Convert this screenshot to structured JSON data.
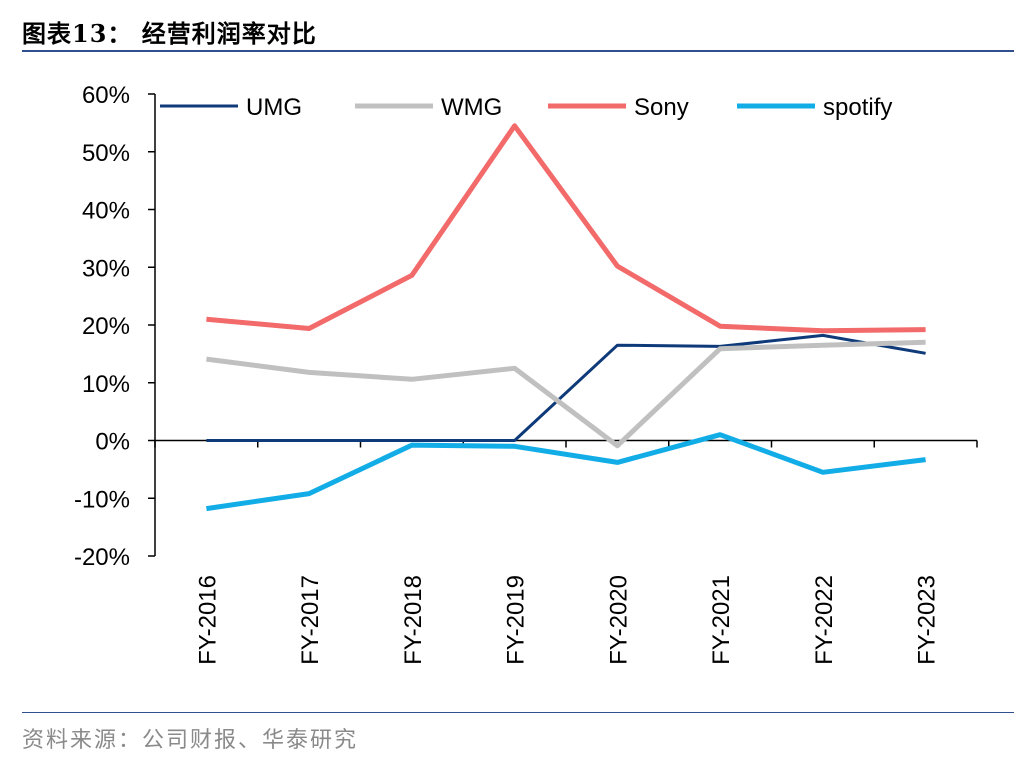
{
  "figure": {
    "title": "图表13：  经营利润率对比",
    "source": "资料来源：公司财报、华泰研究"
  },
  "chart_data": {
    "type": "line",
    "title": "",
    "xlabel": "",
    "ylabel": "",
    "categories": [
      "FY-2016",
      "FY-2017",
      "FY-2018",
      "FY-2019",
      "FY-2020",
      "FY-2021",
      "FY-2022",
      "FY-2023"
    ],
    "yticks": [
      "60%",
      "50%",
      "40%",
      "30%",
      "20%",
      "10%",
      "0%",
      "-10%",
      "-20%"
    ],
    "ylim": [
      -20,
      60
    ],
    "legend_position": "top",
    "grid": false,
    "series": [
      {
        "name": "UMG",
        "color": "#0e3a7a",
        "values": [
          0,
          0,
          0,
          0,
          16.5,
          16.3,
          18.2,
          15.1
        ]
      },
      {
        "name": "WMG",
        "color": "#c0c0c0",
        "values": [
          14.1,
          11.8,
          10.6,
          12.5,
          -0.9,
          15.9,
          16.5,
          17.0
        ]
      },
      {
        "name": "Sony",
        "color": "#f26a6a",
        "values": [
          21.0,
          19.4,
          28.6,
          54.5,
          30.2,
          19.8,
          19.0,
          19.2
        ]
      },
      {
        "name": "spotify",
        "color": "#12ace6",
        "values": [
          -11.8,
          -9.2,
          -0.8,
          -1.0,
          -3.8,
          1.0,
          -5.5,
          -3.3
        ]
      }
    ]
  }
}
